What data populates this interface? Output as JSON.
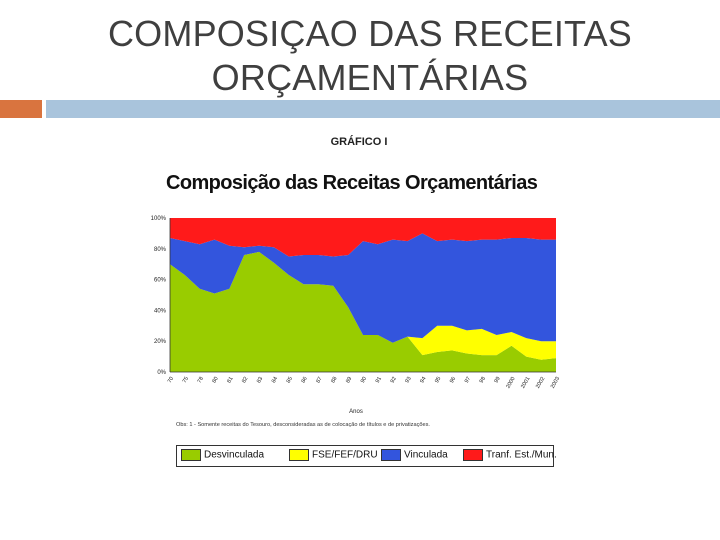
{
  "slide": {
    "title_line1": "COMPOSIÇAO DAS RECEITAS",
    "title_line2": "ORÇAMENTÁRIAS",
    "figure_label": "GRÁFICO I"
  },
  "colors": {
    "accent_orange": "#d9743f",
    "accent_blue": "#a9c4dc",
    "desvinculada": "#99cc00",
    "fse_fef_dru": "#ffff00",
    "vinculada": "#3355dd",
    "transf": "#ff1a1a"
  },
  "chart_data": {
    "type": "area",
    "stacked": true,
    "title": "Composição das Receitas Orçamentárias",
    "xlabel": "Anos",
    "ylabel": "",
    "ylim": [
      0,
      100
    ],
    "yticks": [
      "0%",
      "20%",
      "40%",
      "60%",
      "80%",
      "100%"
    ],
    "categories": [
      "70",
      "75",
      "78",
      "80",
      "81",
      "82",
      "83",
      "84",
      "85",
      "86",
      "87",
      "88",
      "89",
      "90",
      "91",
      "92",
      "93",
      "94",
      "95",
      "96",
      "97",
      "98",
      "99",
      "2000",
      "2001",
      "2002",
      "2003"
    ],
    "series": [
      {
        "name": "Desvinculada",
        "color_key": "desvinculada",
        "values": [
          70,
          63,
          54,
          51,
          54,
          76,
          78,
          71,
          63,
          57,
          57,
          56,
          42,
          24,
          24,
          19,
          23,
          11,
          13,
          14,
          12,
          11,
          11,
          17,
          10,
          8,
          9
        ]
      },
      {
        "name": "FSE/FEF/DRU",
        "color_key": "fse_fef_dru",
        "values": [
          0,
          0,
          0,
          0,
          0,
          0,
          0,
          0,
          0,
          0,
          0,
          0,
          0,
          0,
          0,
          0,
          0,
          11,
          17,
          16,
          15,
          17,
          13,
          9,
          12,
          12,
          11
        ]
      },
      {
        "name": "Vinculada",
        "color_key": "vinculada",
        "values": [
          17,
          22,
          29,
          35,
          28,
          5,
          4,
          10,
          12,
          19,
          19,
          19,
          34,
          61,
          59,
          67,
          62,
          68,
          55,
          56,
          58,
          58,
          62,
          61,
          65,
          66,
          66
        ]
      },
      {
        "name": "Tranf. Est./Mun.",
        "color_key": "transf",
        "values": [
          13,
          15,
          17,
          14,
          18,
          19,
          18,
          19,
          25,
          24,
          24,
          25,
          24,
          15,
          17,
          14,
          15,
          10,
          15,
          14,
          15,
          14,
          14,
          13,
          13,
          14,
          14
        ]
      }
    ],
    "note": "Obs: 1 - Somente receitas do Tesouro, desconsideradas as de colocação de títulos e de privatizações.",
    "legend_position": "bottom"
  }
}
